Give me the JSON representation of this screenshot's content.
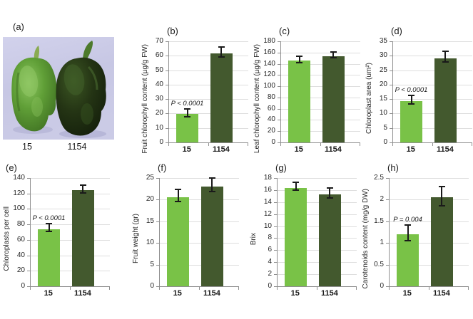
{
  "figure": {
    "panel_a": {
      "label": "(a)",
      "categories": [
        "15",
        "1154"
      ],
      "photo_background": "#c9c9e6",
      "pepper_left_color": "#5f9e3a",
      "pepper_right_color": "#1d2c11"
    },
    "bar_colors": [
      "#79c247",
      "#43592e"
    ],
    "grid_color": "#dedede",
    "axis_color": "#8f8f8f"
  },
  "chart_data": [
    {
      "type": "bar",
      "panel": "(b)",
      "ylabel": "Fruit chlorophyll content (µg/g FW)",
      "categories": [
        "15",
        "1154"
      ],
      "values": [
        19.5,
        61.5
      ],
      "errors": [
        2,
        3
      ],
      "ylim": [
        0,
        70
      ],
      "ystep": 10,
      "grid": true,
      "annotation": "P < 0.0001"
    },
    {
      "type": "bar",
      "panel": "(c)",
      "ylabel": "Leaf chlorophyll content (µg/g FW)",
      "categories": [
        "15",
        "1154"
      ],
      "values": [
        145.5,
        153.5
      ],
      "errors": [
        4.5,
        4
      ],
      "ylim": [
        0,
        180
      ],
      "ystep": 20,
      "grid": true,
      "annotation": null
    },
    {
      "type": "bar",
      "panel": "(d)",
      "ylabel": "Chloroplast area (um²)",
      "categories": [
        "15",
        "1154"
      ],
      "values": [
        14.3,
        29.2
      ],
      "errors": [
        1.2,
        1.5
      ],
      "ylim": [
        0,
        35
      ],
      "ystep": 5,
      "grid": true,
      "annotation": "P < 0.0001"
    },
    {
      "type": "bar",
      "panel": "(e)",
      "ylabel": "Chloroplasts  per  cell",
      "categories": [
        "15",
        "1154"
      ],
      "values": [
        74,
        124
      ],
      "errors": [
        4,
        4
      ],
      "ylim": [
        0,
        140
      ],
      "ystep": 20,
      "grid": true,
      "annotation": "P < 0.0001"
    },
    {
      "type": "bar",
      "panel": "(f)",
      "ylabel": "Fruit weight (gr)",
      "categories": [
        "15",
        "1154"
      ],
      "values": [
        20.6,
        23.1
      ],
      "errors": [
        1.2,
        1.4
      ],
      "ylim": [
        0,
        25
      ],
      "ystep": 5,
      "grid": true,
      "annotation": null
    },
    {
      "type": "bar",
      "panel": "(g)",
      "ylabel": "Brix",
      "categories": [
        "15",
        "1154"
      ],
      "values": [
        16.4,
        15.3
      ],
      "errors": [
        0.5,
        0.7
      ],
      "ylim": [
        0,
        18
      ],
      "ystep": 2,
      "grid": true,
      "annotation": null
    },
    {
      "type": "bar",
      "panel": "(h)",
      "ylabel": "Carotenoids content (mg/g DW)",
      "categories": [
        "15",
        "1154"
      ],
      "values": [
        1.2,
        2.05
      ],
      "errors": [
        0.17,
        0.2
      ],
      "ylim": [
        0,
        2.5
      ],
      "ystep": 0.5,
      "grid": true,
      "annotation": "P = 0.004"
    }
  ]
}
